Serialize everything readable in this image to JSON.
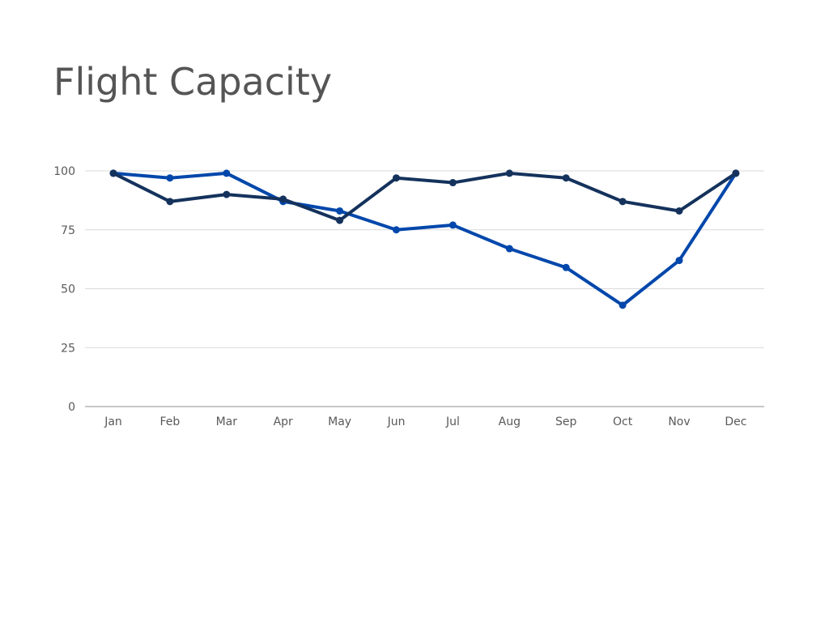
{
  "chart_data": {
    "type": "line",
    "title": "Flight Capacity",
    "xlabel": "",
    "ylabel": "",
    "categories": [
      "Jan",
      "Feb",
      "Mar",
      "Apr",
      "May",
      "Jun",
      "Jul",
      "Aug",
      "Sep",
      "Oct",
      "Nov",
      "Dec"
    ],
    "yticks": [
      "0",
      "25",
      "50",
      "75",
      "100"
    ],
    "ylim": [
      0,
      100
    ],
    "grid": true,
    "legend": "none",
    "series": [
      {
        "color": "#0047ab",
        "values": [
          99,
          97,
          99,
          87,
          83,
          75,
          77,
          67,
          59,
          43,
          62,
          99
        ]
      },
      {
        "color": "#14325c",
        "values": [
          99,
          87,
          90,
          88,
          79,
          97,
          95,
          99,
          97,
          87,
          83,
          99
        ]
      }
    ]
  }
}
